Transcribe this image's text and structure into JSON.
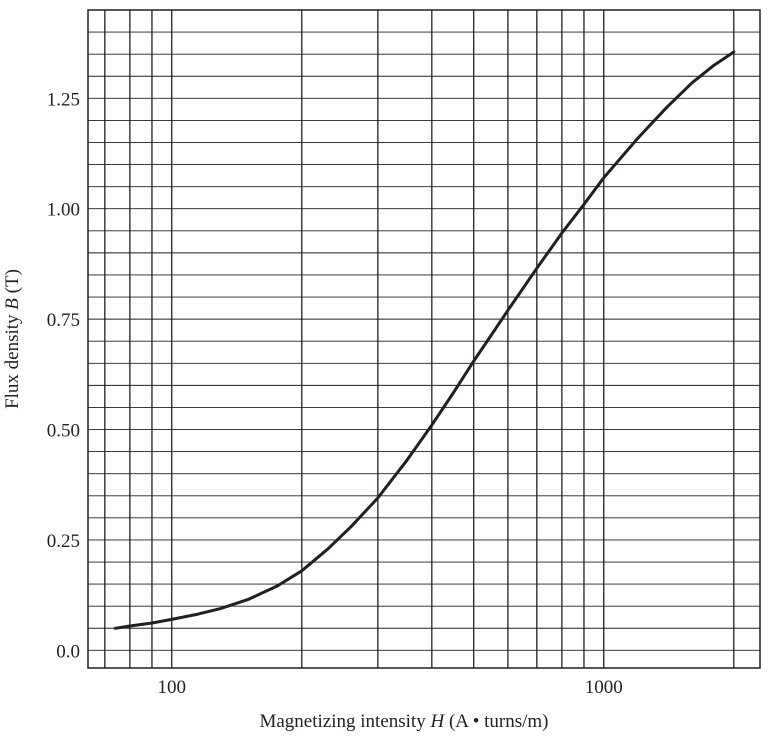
{
  "chart_data": {
    "type": "line",
    "title": "",
    "xlabel": {
      "prefix": "Magnetizing intensity ",
      "var": "H",
      "suffix": " (A • turns/m)"
    },
    "ylabel": {
      "prefix": "Flux density ",
      "var": "B",
      "suffix": " (T)"
    },
    "x_scale": "log",
    "xlim": [
      64,
      2300
    ],
    "ylim": [
      -0.04,
      1.45
    ],
    "x_ticks": [
      100,
      1000
    ],
    "x_tick_labels": [
      "100",
      "1000"
    ],
    "y_ticks": [
      0.0,
      0.25,
      0.5,
      0.75,
      1.0,
      1.25
    ],
    "y_tick_labels": [
      "0.0",
      "0.25",
      "0.50",
      "0.75",
      "1.00",
      "1.25"
    ],
    "x_grid": [
      70,
      80,
      90,
      100,
      200,
      300,
      400,
      500,
      600,
      700,
      800,
      900,
      1000,
      2000
    ],
    "y_grid_step": 0.05,
    "grid": true,
    "legend": "none",
    "line_color": "#231f20",
    "series": [
      {
        "x": [
          74,
          80,
          90,
          100,
          115,
          130,
          150,
          175,
          200,
          230,
          260,
          300,
          350,
          400,
          450,
          500,
          550,
          600,
          700,
          800,
          900,
          1000,
          1200,
          1400,
          1600,
          1800,
          2000
        ],
        "y": [
          0.05,
          0.055,
          0.062,
          0.07,
          0.082,
          0.095,
          0.115,
          0.145,
          0.18,
          0.23,
          0.28,
          0.345,
          0.43,
          0.51,
          0.585,
          0.655,
          0.715,
          0.77,
          0.865,
          0.945,
          1.01,
          1.07,
          1.16,
          1.23,
          1.285,
          1.325,
          1.355
        ]
      }
    ]
  }
}
